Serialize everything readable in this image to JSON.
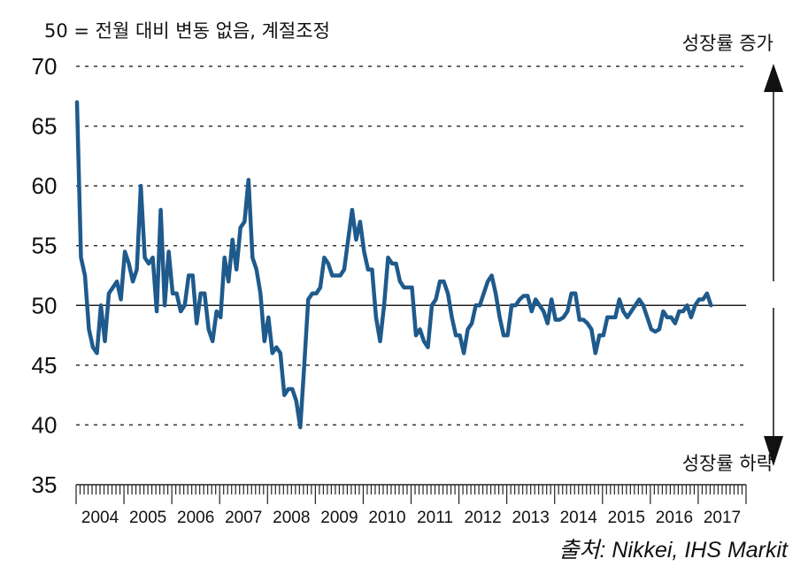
{
  "chart_data": {
    "type": "line",
    "subtitle": "50 = 전월 대비 변동 없음, 계절조정",
    "arrow_up_label": "성장률 증가",
    "arrow_down_label": "성장률 하락",
    "source": "출처: Nikkei, IHS Markit",
    "ylim": [
      35,
      70
    ],
    "y_ticks": [
      35,
      40,
      45,
      50,
      55,
      60,
      65,
      70
    ],
    "reference_line": 50,
    "grid": "dashed horizontal at 40-70",
    "x_start": "2004-01",
    "x_end": "2017-10",
    "year_labels": [
      "2004",
      "2005",
      "2006",
      "2007",
      "2008",
      "2009",
      "2010",
      "2011",
      "2012",
      "2013",
      "2014",
      "2015",
      "2016",
      "2017"
    ],
    "line_color": "#1f5a8c",
    "series": [
      {
        "values": [
          67.0,
          54.0,
          52.5,
          48.0,
          46.5,
          46.0,
          50.0,
          47.0,
          51.0,
          51.5,
          52.0,
          50.5,
          54.5,
          53.5,
          52.0,
          53.0,
          60.0,
          54.0,
          53.5,
          54.0,
          49.5,
          58.0,
          50.0,
          54.5,
          51.0,
          51.0,
          49.5,
          50.0,
          52.5,
          52.5,
          48.5,
          51.0,
          51.0,
          48.0,
          47.0,
          49.5,
          49.0,
          54.0,
          52.0,
          55.5,
          53.0,
          56.5,
          57.0,
          60.5,
          54.0,
          53.0,
          51.0,
          47.0,
          49.0,
          46.0,
          46.5,
          46.0,
          42.5,
          43.0,
          43.0,
          42.0,
          39.8,
          45.0,
          50.5,
          51.0,
          51.0,
          51.5,
          54.0,
          53.5,
          52.5,
          52.5,
          52.5,
          53.0,
          55.5,
          58.0,
          55.5,
          57.0,
          54.5,
          53.0,
          53.0,
          49.0,
          47.0,
          50.0,
          54.0,
          53.5,
          53.5,
          52.0,
          51.5,
          51.5,
          51.5,
          47.5,
          48.0,
          47.0,
          46.5,
          50.0,
          50.5,
          52.0,
          52.0,
          51.0,
          49.0,
          47.5,
          47.5,
          46.0,
          48.0,
          48.5,
          50.0,
          50.0,
          51.0,
          52.0,
          52.5,
          51.0,
          49.0,
          47.5,
          47.5,
          50.0,
          50.0,
          50.5,
          50.8,
          50.8,
          49.5,
          50.5,
          50.0,
          49.5,
          48.5,
          50.5,
          48.8,
          48.8,
          49.0,
          49.5,
          51.0,
          51.0,
          48.8,
          48.8,
          48.5,
          48.0,
          46.0,
          47.5,
          47.5,
          49.0,
          49.0,
          49.0,
          50.5,
          49.5,
          49.0,
          49.5,
          50.0,
          50.5,
          50.0,
          49.0,
          48.0,
          47.8,
          48.0,
          49.5,
          49.0,
          49.0,
          48.5,
          49.5,
          49.5,
          50.0,
          49.0,
          50.0,
          50.5,
          50.5,
          51.0,
          50.0
        ]
      }
    ]
  }
}
